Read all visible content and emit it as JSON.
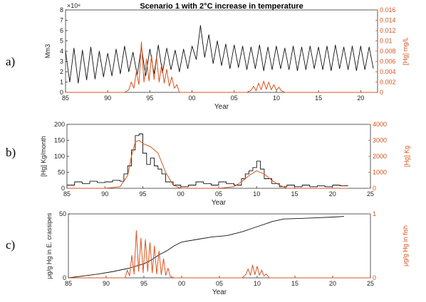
{
  "panel_labels": [
    "a)",
    "b)",
    "c)"
  ],
  "colors": {
    "left": "#111111",
    "right": "#d9531e",
    "axis": "#333333"
  },
  "chart_data": [
    {
      "type": "line",
      "title": "Scenario 1 with 2°C increase in temperature",
      "xlabel": "Year",
      "ylabel": "Mm3",
      "y_exponent": "×10⁸",
      "ylabel_right": "[Hg] mg/L",
      "xlim": [
        85,
        122
      ],
      "ylim": [
        0,
        8
      ],
      "ylim_right": [
        0,
        0.016
      ],
      "x_ticks": [
        85,
        90,
        95,
        100,
        105,
        110,
        115,
        120
      ],
      "x_tick_labels": [
        "85",
        "90",
        "95",
        "00",
        "05",
        "10",
        "15",
        "20"
      ],
      "y_ticks": [
        0,
        1,
        2,
        3,
        4,
        5,
        6,
        7,
        8
      ],
      "y_tick_labels": [
        "0",
        "1",
        "2",
        "3",
        "4",
        "5",
        "6",
        "7",
        "8"
      ],
      "y_ticks_right": [
        0,
        0.002,
        0.004,
        0.006,
        0.008,
        0.01,
        0.012,
        0.014,
        0.016
      ],
      "y_tick_labels_right": [
        "0",
        "0.002",
        "0.004",
        "0.006",
        "0.008",
        "0.01",
        "0.012",
        "0.014",
        "0.016"
      ],
      "series": [
        {
          "axis": "left",
          "x": [
            85,
            85.5,
            86,
            86.5,
            87,
            87.5,
            88,
            88.5,
            89,
            89.5,
            90,
            90.5,
            91,
            91.5,
            92,
            92.5,
            93,
            93.5,
            94,
            94.5,
            95,
            95.5,
            96,
            96.5,
            97,
            97.5,
            98,
            98.5,
            99,
            99.5,
            100,
            100.5,
            101,
            101.5,
            102,
            102.5,
            103,
            103.5,
            104,
            104.5,
            105,
            105.5,
            106,
            106.5,
            107,
            107.5,
            108,
            108.5,
            109,
            109.5,
            110,
            110.5,
            111,
            111.5,
            112,
            112.5,
            113,
            113.5,
            114,
            114.5,
            115,
            115.5,
            116,
            116.5,
            117,
            117.5,
            118,
            118.5,
            119,
            119.5,
            120,
            120.5,
            121,
            121.5
          ],
          "y": [
            4.0,
            1.0,
            4.3,
            0.9,
            4.1,
            1.2,
            4.4,
            1.3,
            4.0,
            1.5,
            3.8,
            1.6,
            4.2,
            1.8,
            4.5,
            2.0,
            3.9,
            1.7,
            4.4,
            1.6,
            4.2,
            1.8,
            4.6,
            1.9,
            4.3,
            2.2,
            4.1,
            2.0,
            4.2,
            2.3,
            4.5,
            3.2,
            6.5,
            3.4,
            5.6,
            2.8,
            5.0,
            2.6,
            4.7,
            2.3,
            4.6,
            2.4,
            4.5,
            2.2,
            4.4,
            2.3,
            4.6,
            2.1,
            4.4,
            2.2,
            4.5,
            2.3,
            4.3,
            2.2,
            4.5,
            2.1,
            4.4,
            2.2,
            4.5,
            2.3,
            4.4,
            2.2,
            4.5,
            2.1,
            4.6,
            2.3,
            4.4,
            2.2,
            4.5,
            2.1,
            4.5,
            2.2,
            4.4,
            2.3
          ]
        },
        {
          "axis": "right",
          "x": [
            85,
            92.0,
            92.5,
            92.8,
            93.1,
            93.4,
            93.7,
            94.0,
            94.3,
            94.6,
            94.9,
            95.2,
            95.5,
            95.8,
            96.1,
            96.4,
            96.7,
            97.0,
            97.3,
            97.6,
            97.9,
            98.2,
            98.5,
            100,
            106.5,
            107.0,
            107.3,
            107.6,
            107.9,
            108.2,
            108.5,
            108.8,
            109.1,
            109.4,
            109.7,
            110.0,
            110.3,
            110.6,
            111,
            122
          ],
          "y": [
            0,
            0,
            0.0005,
            0.002,
            0.0008,
            0.004,
            0.0015,
            0.0098,
            0.002,
            0.0065,
            0.0022,
            0.0072,
            0.0025,
            0.0068,
            0.002,
            0.0055,
            0.0018,
            0.0045,
            0.0012,
            0.003,
            0.0008,
            0.0015,
            0,
            0,
            0,
            0.0004,
            0.0012,
            0.0003,
            0.0018,
            0.0005,
            0.0022,
            0.0006,
            0.002,
            0.0005,
            0.0015,
            0.0004,
            0.001,
            0.0003,
            0,
            0
          ]
        }
      ]
    },
    {
      "type": "line",
      "xlabel": "Year",
      "ylabel": "[Hg] Kg/month",
      "ylabel_right": "[Hg] Kg",
      "xlim": [
        85,
        125
      ],
      "ylim": [
        0,
        200
      ],
      "ylim_right": [
        0,
        4000
      ],
      "x_ticks": [
        85,
        90,
        95,
        100,
        105,
        110,
        115,
        120,
        125
      ],
      "x_tick_labels": [
        "85",
        "90",
        "95",
        "00",
        "05",
        "10",
        "15",
        "20",
        "25"
      ],
      "y_ticks": [
        0,
        50,
        100,
        150,
        200
      ],
      "y_tick_labels": [
        "0",
        "50",
        "100",
        "150",
        "200"
      ],
      "y_ticks_right": [
        0,
        1000,
        2000,
        3000,
        4000
      ],
      "y_tick_labels_right": [
        "0",
        "1000",
        "2000",
        "3000",
        "4000"
      ],
      "series": [
        {
          "axis": "left",
          "step": true,
          "x": [
            85,
            86,
            87,
            88,
            89,
            90,
            91,
            92,
            92.5,
            93,
            93.5,
            94,
            94.5,
            95,
            95.5,
            96,
            96.5,
            97,
            97.5,
            98,
            99,
            100,
            101,
            102,
            103,
            104,
            105,
            106,
            107,
            108,
            108.5,
            109,
            109.5,
            110,
            110.5,
            111,
            112,
            113,
            114,
            115,
            116,
            117,
            118,
            119,
            120,
            121,
            122
          ],
          "y": [
            10,
            20,
            15,
            22,
            18,
            20,
            25,
            22,
            45,
            70,
            120,
            165,
            170,
            110,
            75,
            95,
            70,
            60,
            45,
            20,
            10,
            5,
            10,
            20,
            15,
            10,
            20,
            15,
            10,
            30,
            45,
            55,
            65,
            85,
            60,
            30,
            15,
            5,
            10,
            5,
            10,
            5,
            8,
            5,
            10,
            8,
            10
          ]
        },
        {
          "axis": "right",
          "x": [
            85,
            90,
            92,
            93,
            93.5,
            94,
            94.5,
            95,
            96,
            97,
            98,
            99,
            100,
            105,
            107,
            108,
            109,
            110,
            111,
            112,
            113,
            114,
            122
          ],
          "y": [
            0,
            0,
            100,
            800,
            2000,
            2900,
            3000,
            2800,
            2600,
            2200,
            1000,
            200,
            0,
            0,
            100,
            400,
            800,
            1100,
            900,
            500,
            200,
            0,
            0
          ]
        }
      ]
    },
    {
      "type": "line",
      "xlabel": "Year",
      "ylabel": "μg/g Hg in E. crassipes",
      "ylabel_right": "μg/g Hg in fish",
      "xlim": [
        85,
        125
      ],
      "ylim": [
        0,
        50
      ],
      "ylim_right": [
        0,
        1
      ],
      "x_ticks": [
        85,
        90,
        95,
        100,
        105,
        110,
        115,
        120,
        125
      ],
      "x_tick_labels": [
        "85",
        "90",
        "95",
        "00",
        "05",
        "10",
        "15",
        "20",
        "25"
      ],
      "y_ticks": [
        0,
        50
      ],
      "y_tick_labels": [
        "0",
        "50"
      ],
      "y_ticks_right": [
        0,
        1
      ],
      "y_tick_labels_right": [
        "0",
        "1"
      ],
      "series": [
        {
          "axis": "left",
          "x": [
            85,
            87,
            89,
            91,
            93,
            95,
            96,
            97,
            98,
            99,
            100,
            102,
            104,
            106,
            108,
            110,
            112,
            113.5,
            116,
            118,
            120,
            121.5
          ],
          "y": [
            0,
            1.5,
            3,
            5,
            7.5,
            11,
            14,
            18,
            21,
            25,
            28,
            30,
            32,
            33,
            36,
            40,
            44,
            46,
            46.5,
            47,
            47.5,
            48
          ]
        },
        {
          "axis": "right",
          "x": [
            85,
            92.5,
            92.8,
            93.1,
            93.4,
            93.7,
            94.0,
            94.3,
            94.6,
            94.9,
            95.2,
            95.5,
            95.8,
            96.1,
            96.4,
            96.7,
            97.0,
            97.3,
            97.6,
            97.9,
            98.2,
            98.5,
            99,
            108,
            108.5,
            108.8,
            109.1,
            109.4,
            109.7,
            110.0,
            110.3,
            110.6,
            110.9,
            111.2,
            111.6,
            125
          ],
          "y": [
            0,
            0,
            0.12,
            0.03,
            0.35,
            0.06,
            0.74,
            0.1,
            0.62,
            0.08,
            0.6,
            0.1,
            0.55,
            0.08,
            0.5,
            0.06,
            0.42,
            0.05,
            0.3,
            0.04,
            0.15,
            0.02,
            0,
            0,
            0.05,
            0.14,
            0.04,
            0.2,
            0.05,
            0.18,
            0.04,
            0.12,
            0.03,
            0.06,
            0,
            0
          ]
        }
      ]
    }
  ]
}
